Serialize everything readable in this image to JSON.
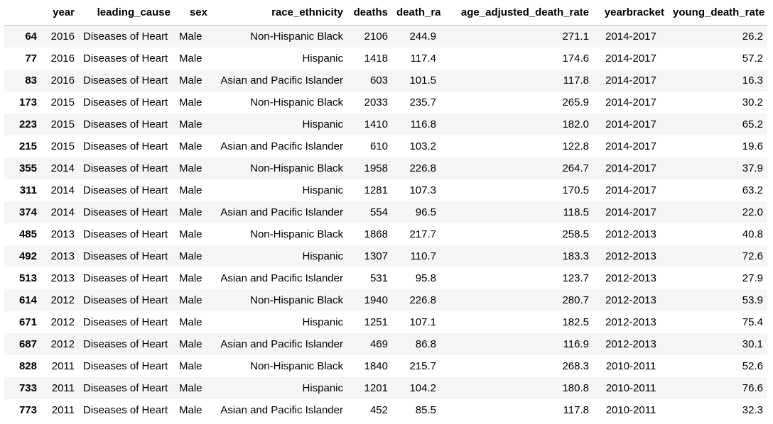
{
  "columns": {
    "index": "",
    "year": "year",
    "leading_cause": "leading_cause",
    "sex": "sex",
    "race_ethnicity": "race_ethnicity",
    "deaths": "deaths",
    "death_rate": "death_rate",
    "age_adjusted_death_rate": "age_adjusted_death_rate",
    "yearbracket": "yearbracket",
    "young_death_rate": "young_death_rate"
  },
  "rows": [
    {
      "index": "64",
      "year": "2016",
      "leading_cause": "Diseases of Heart",
      "sex": "Male",
      "race_ethnicity": "Non-Hispanic Black",
      "deaths": "2106",
      "death_rate": "244.9",
      "age_adjusted_death_rate": "271.1",
      "yearbracket": "2014-2017",
      "young_death_rate": "26.2"
    },
    {
      "index": "77",
      "year": "2016",
      "leading_cause": "Diseases of Heart",
      "sex": "Male",
      "race_ethnicity": "Hispanic",
      "deaths": "1418",
      "death_rate": "117.4",
      "age_adjusted_death_rate": "174.6",
      "yearbracket": "2014-2017",
      "young_death_rate": "57.2"
    },
    {
      "index": "83",
      "year": "2016",
      "leading_cause": "Diseases of Heart",
      "sex": "Male",
      "race_ethnicity": "Asian and Pacific Islander",
      "deaths": "603",
      "death_rate": "101.5",
      "age_adjusted_death_rate": "117.8",
      "yearbracket": "2014-2017",
      "young_death_rate": "16.3"
    },
    {
      "index": "173",
      "year": "2015",
      "leading_cause": "Diseases of Heart",
      "sex": "Male",
      "race_ethnicity": "Non-Hispanic Black",
      "deaths": "2033",
      "death_rate": "235.7",
      "age_adjusted_death_rate": "265.9",
      "yearbracket": "2014-2017",
      "young_death_rate": "30.2"
    },
    {
      "index": "223",
      "year": "2015",
      "leading_cause": "Diseases of Heart",
      "sex": "Male",
      "race_ethnicity": "Hispanic",
      "deaths": "1410",
      "death_rate": "116.8",
      "age_adjusted_death_rate": "182.0",
      "yearbracket": "2014-2017",
      "young_death_rate": "65.2"
    },
    {
      "index": "215",
      "year": "2015",
      "leading_cause": "Diseases of Heart",
      "sex": "Male",
      "race_ethnicity": "Asian and Pacific Islander",
      "deaths": "610",
      "death_rate": "103.2",
      "age_adjusted_death_rate": "122.8",
      "yearbracket": "2014-2017",
      "young_death_rate": "19.6"
    },
    {
      "index": "355",
      "year": "2014",
      "leading_cause": "Diseases of Heart",
      "sex": "Male",
      "race_ethnicity": "Non-Hispanic Black",
      "deaths": "1958",
      "death_rate": "226.8",
      "age_adjusted_death_rate": "264.7",
      "yearbracket": "2014-2017",
      "young_death_rate": "37.9"
    },
    {
      "index": "311",
      "year": "2014",
      "leading_cause": "Diseases of Heart",
      "sex": "Male",
      "race_ethnicity": "Hispanic",
      "deaths": "1281",
      "death_rate": "107.3",
      "age_adjusted_death_rate": "170.5",
      "yearbracket": "2014-2017",
      "young_death_rate": "63.2"
    },
    {
      "index": "374",
      "year": "2014",
      "leading_cause": "Diseases of Heart",
      "sex": "Male",
      "race_ethnicity": "Asian and Pacific Islander",
      "deaths": "554",
      "death_rate": "96.5",
      "age_adjusted_death_rate": "118.5",
      "yearbracket": "2014-2017",
      "young_death_rate": "22.0"
    },
    {
      "index": "485",
      "year": "2013",
      "leading_cause": "Diseases of Heart",
      "sex": "Male",
      "race_ethnicity": "Non-Hispanic Black",
      "deaths": "1868",
      "death_rate": "217.7",
      "age_adjusted_death_rate": "258.5",
      "yearbracket": "2012-2013",
      "young_death_rate": "40.8"
    },
    {
      "index": "492",
      "year": "2013",
      "leading_cause": "Diseases of Heart",
      "sex": "Male",
      "race_ethnicity": "Hispanic",
      "deaths": "1307",
      "death_rate": "110.7",
      "age_adjusted_death_rate": "183.3",
      "yearbracket": "2012-2013",
      "young_death_rate": "72.6"
    },
    {
      "index": "513",
      "year": "2013",
      "leading_cause": "Diseases of Heart",
      "sex": "Male",
      "race_ethnicity": "Asian and Pacific Islander",
      "deaths": "531",
      "death_rate": "95.8",
      "age_adjusted_death_rate": "123.7",
      "yearbracket": "2012-2013",
      "young_death_rate": "27.9"
    },
    {
      "index": "614",
      "year": "2012",
      "leading_cause": "Diseases of Heart",
      "sex": "Male",
      "race_ethnicity": "Non-Hispanic Black",
      "deaths": "1940",
      "death_rate": "226.8",
      "age_adjusted_death_rate": "280.7",
      "yearbracket": "2012-2013",
      "young_death_rate": "53.9"
    },
    {
      "index": "671",
      "year": "2012",
      "leading_cause": "Diseases of Heart",
      "sex": "Male",
      "race_ethnicity": "Hispanic",
      "deaths": "1251",
      "death_rate": "107.1",
      "age_adjusted_death_rate": "182.5",
      "yearbracket": "2012-2013",
      "young_death_rate": "75.4"
    },
    {
      "index": "687",
      "year": "2012",
      "leading_cause": "Diseases of Heart",
      "sex": "Male",
      "race_ethnicity": "Asian and Pacific Islander",
      "deaths": "469",
      "death_rate": "86.8",
      "age_adjusted_death_rate": "116.9",
      "yearbracket": "2012-2013",
      "young_death_rate": "30.1"
    },
    {
      "index": "828",
      "year": "2011",
      "leading_cause": "Diseases of Heart",
      "sex": "Male",
      "race_ethnicity": "Non-Hispanic Black",
      "deaths": "1840",
      "death_rate": "215.7",
      "age_adjusted_death_rate": "268.3",
      "yearbracket": "2010-2011",
      "young_death_rate": "52.6"
    },
    {
      "index": "733",
      "year": "2011",
      "leading_cause": "Diseases of Heart",
      "sex": "Male",
      "race_ethnicity": "Hispanic",
      "deaths": "1201",
      "death_rate": "104.2",
      "age_adjusted_death_rate": "180.8",
      "yearbracket": "2010-2011",
      "young_death_rate": "76.6"
    },
    {
      "index": "773",
      "year": "2011",
      "leading_cause": "Diseases of Heart",
      "sex": "Male",
      "race_ethnicity": "Asian and Pacific Islander",
      "deaths": "452",
      "death_rate": "85.5",
      "age_adjusted_death_rate": "117.8",
      "yearbracket": "2010-2011",
      "young_death_rate": "32.3"
    }
  ]
}
